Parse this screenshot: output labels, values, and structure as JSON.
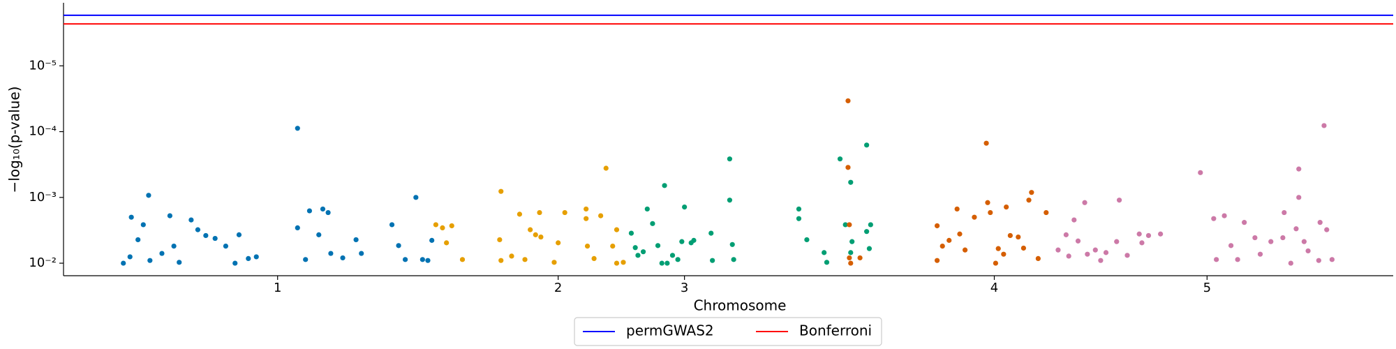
{
  "chart_data": {
    "type": "scatter",
    "x_label": "Chromosome",
    "y_label": "−log₁₀(p-value)",
    "log_scale_y": true,
    "xlim": [
      0,
      100
    ],
    "xticks": [
      {
        "value": 16.1,
        "label": "1"
      },
      {
        "value": 37.2,
        "label": "2"
      },
      {
        "value": 46.7,
        "label": "3"
      },
      {
        "value": 70.0,
        "label": "4"
      },
      {
        "value": 86.0,
        "label": "5"
      }
    ],
    "ylim": [
      0.0155,
      1.1e-06
    ],
    "yticks": [
      {
        "value": 0.01,
        "label": "10⁻²"
      },
      {
        "value": 0.001,
        "label": "10⁻³"
      },
      {
        "value": 0.0001,
        "label": "10⁻⁴"
      },
      {
        "value": 1e-05,
        "label": "10⁻⁵"
      }
    ],
    "legend_position": "bottom",
    "thresholds": [
      {
        "name": "permGWAS2",
        "color": "#0000ff",
        "value": 1.7e-06
      },
      {
        "name": "Bonferroni",
        "color": "#ff0000",
        "value": 2.3e-06
      }
    ],
    "series": [
      {
        "color": "#0072b2",
        "x": [
          4.5,
          5.0,
          5.1,
          5.6,
          6.0,
          6.4,
          6.5,
          7.4,
          8.0,
          8.3,
          8.7,
          9.6,
          10.1,
          10.7,
          11.4,
          12.2,
          12.9,
          13.2,
          13.9,
          14.5,
          17.6,
          17.6,
          18.2,
          18.5,
          19.2,
          19.5,
          19.9,
          20.1,
          21.0,
          22.0,
          22.4,
          24.7,
          25.2,
          25.7,
          26.5,
          27.0,
          27.4,
          27.7
        ],
        "values": [
          0.01,
          0.008,
          0.002,
          0.0044,
          0.0026,
          0.00093,
          0.0091,
          0.0071,
          0.0019,
          0.0055,
          0.0097,
          0.0022,
          0.0031,
          0.0038,
          0.0042,
          0.0055,
          0.01,
          0.0037,
          0.0085,
          0.008,
          8.9e-05,
          0.0029,
          0.0088,
          0.0016,
          0.0037,
          0.0015,
          0.0017,
          0.0071,
          0.0083,
          0.0044,
          0.0071,
          0.0026,
          0.0054,
          0.0088,
          0.001,
          0.0088,
          0.0091,
          0.0045
        ]
      },
      {
        "color": "#e69f00",
        "x": [
          28.0,
          28.5,
          28.8,
          29.2,
          30.0,
          32.8,
          32.9,
          32.9,
          33.7,
          34.3,
          34.7,
          35.1,
          35.5,
          35.8,
          35.9,
          36.9,
          37.2,
          37.7,
          39.3,
          39.3,
          39.4,
          39.9,
          40.4,
          40.8,
          41.3,
          41.6,
          41.6,
          42.1
        ],
        "values": [
          0.0026,
          0.0029,
          0.0049,
          0.0027,
          0.0088,
          0.0044,
          0.00081,
          0.0091,
          0.0078,
          0.0018,
          0.0088,
          0.0031,
          0.0037,
          0.0017,
          0.004,
          0.0097,
          0.0049,
          0.0017,
          0.0015,
          0.0021,
          0.0055,
          0.0085,
          0.0019,
          0.00036,
          0.0055,
          0.0031,
          0.01,
          0.0097
        ]
      },
      {
        "color": "#009e73",
        "x": [
          42.7,
          43.0,
          43.2,
          43.6,
          43.9,
          44.3,
          44.7,
          45.0,
          45.2,
          45.4,
          45.8,
          46.2,
          46.5,
          46.7,
          47.2,
          47.4,
          48.7,
          48.8,
          50.1,
          50.1,
          50.3,
          50.4,
          55.3,
          55.3,
          55.9,
          57.2,
          57.4,
          58.4,
          58.8,
          59.2,
          59.2,
          59.3,
          60.4,
          60.4,
          60.6,
          60.7
        ],
        "values": [
          0.0035,
          0.0058,
          0.0076,
          0.0067,
          0.0015,
          0.0025,
          0.0054,
          0.01,
          0.00066,
          0.01,
          0.0076,
          0.0088,
          0.0047,
          0.0014,
          0.0049,
          0.0045,
          0.0035,
          0.0091,
          0.00026,
          0.0011,
          0.0052,
          0.0088,
          0.0015,
          0.0021,
          0.0044,
          0.0069,
          0.0097,
          0.00026,
          0.0026,
          0.00059,
          0.0069,
          0.0047,
          0.00016,
          0.0033,
          0.006,
          0.0026
        ]
      },
      {
        "color": "#d55e00",
        "x": [
          59.0,
          59.0,
          59.1,
          59.1,
          59.2,
          59.9,
          65.7,
          65.7,
          66.1,
          66.6,
          67.2,
          67.4,
          67.8,
          68.5,
          69.4,
          69.5,
          69.7,
          70.1,
          70.3,
          70.7,
          70.9,
          71.2,
          71.8,
          72.2,
          72.6,
          72.8,
          73.3,
          73.9
        ],
        "values": [
          3.4e-05,
          0.00035,
          0.0026,
          0.0083,
          0.01,
          0.0083,
          0.0027,
          0.0091,
          0.0055,
          0.0045,
          0.0015,
          0.0036,
          0.0063,
          0.002,
          0.00015,
          0.0012,
          0.0017,
          0.01,
          0.006,
          0.0073,
          0.0014,
          0.0038,
          0.004,
          0.0059,
          0.0011,
          0.00084,
          0.0085,
          0.0017
        ]
      },
      {
        "color": "#cc79a7",
        "x": [
          74.8,
          75.4,
          75.6,
          76.0,
          76.3,
          76.8,
          77.0,
          77.6,
          78.0,
          78.4,
          79.2,
          79.4,
          80.0,
          80.9,
          81.1,
          81.6,
          82.5,
          85.5,
          86.5,
          86.7,
          87.3,
          87.8,
          88.3,
          88.8,
          89.6,
          90.0,
          90.8,
          91.7,
          91.8,
          92.3,
          92.7,
          92.9,
          92.9,
          93.3,
          93.6,
          94.4,
          94.5,
          94.8,
          95.0,
          95.4
        ],
        "values": [
          0.0063,
          0.0037,
          0.0078,
          0.0022,
          0.0046,
          0.0012,
          0.0073,
          0.0063,
          0.0091,
          0.0069,
          0.0047,
          0.0011,
          0.0076,
          0.0036,
          0.0049,
          0.0038,
          0.0036,
          0.00042,
          0.0021,
          0.0088,
          0.0019,
          0.0054,
          0.0088,
          0.0024,
          0.0041,
          0.0073,
          0.0047,
          0.0041,
          0.0017,
          0.01,
          0.003,
          0.00037,
          0.001,
          0.0047,
          0.0065,
          0.0091,
          0.0024,
          8.1e-05,
          0.0031,
          0.0088
        ]
      }
    ]
  }
}
